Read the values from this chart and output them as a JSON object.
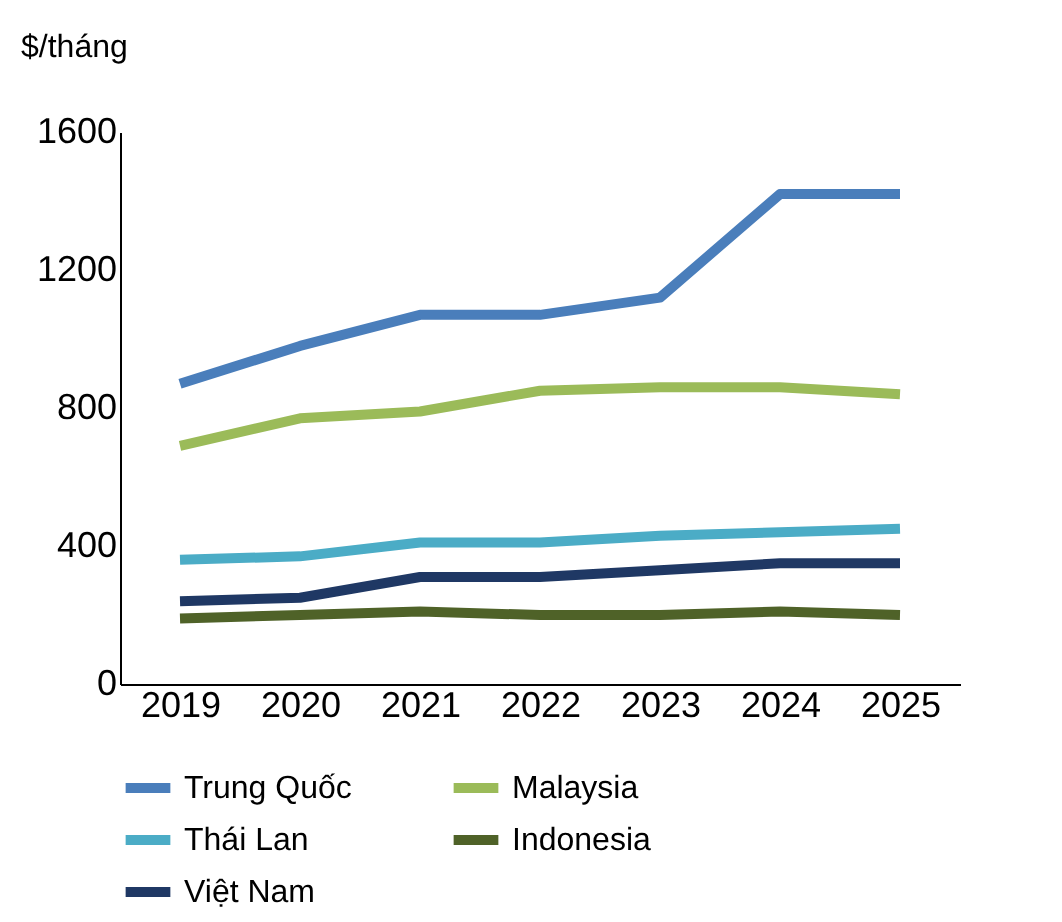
{
  "chart_data": {
    "type": "line",
    "ylabel": "$/tháng",
    "categories": [
      "2019",
      "2020",
      "2021",
      "2022",
      "2023",
      "2024",
      "2025"
    ],
    "series": [
      {
        "name": "Trung Quốc",
        "color": "#4a7ebb",
        "values": [
          870,
          980,
          1070,
          1070,
          1120,
          1420,
          1420
        ]
      },
      {
        "name": "Malaysia",
        "color": "#9bbb59",
        "values": [
          690,
          770,
          790,
          850,
          860,
          860,
          840
        ]
      },
      {
        "name": "Thái Lan",
        "color": "#4bacc6",
        "values": [
          360,
          370,
          410,
          410,
          430,
          440,
          450
        ]
      },
      {
        "name": "Indonesia",
        "color": "#4f6228",
        "values": [
          190,
          200,
          210,
          200,
          200,
          210,
          200
        ]
      },
      {
        "name": "Việt Nam",
        "color": "#1f3864",
        "values": [
          240,
          250,
          310,
          310,
          330,
          350,
          350
        ]
      }
    ],
    "ylim": [
      0,
      1600
    ],
    "yticks": [
      0,
      400,
      800,
      1200,
      1600
    ],
    "grid": false,
    "legend": "bottom",
    "marker": "none",
    "line_style": "solid"
  }
}
